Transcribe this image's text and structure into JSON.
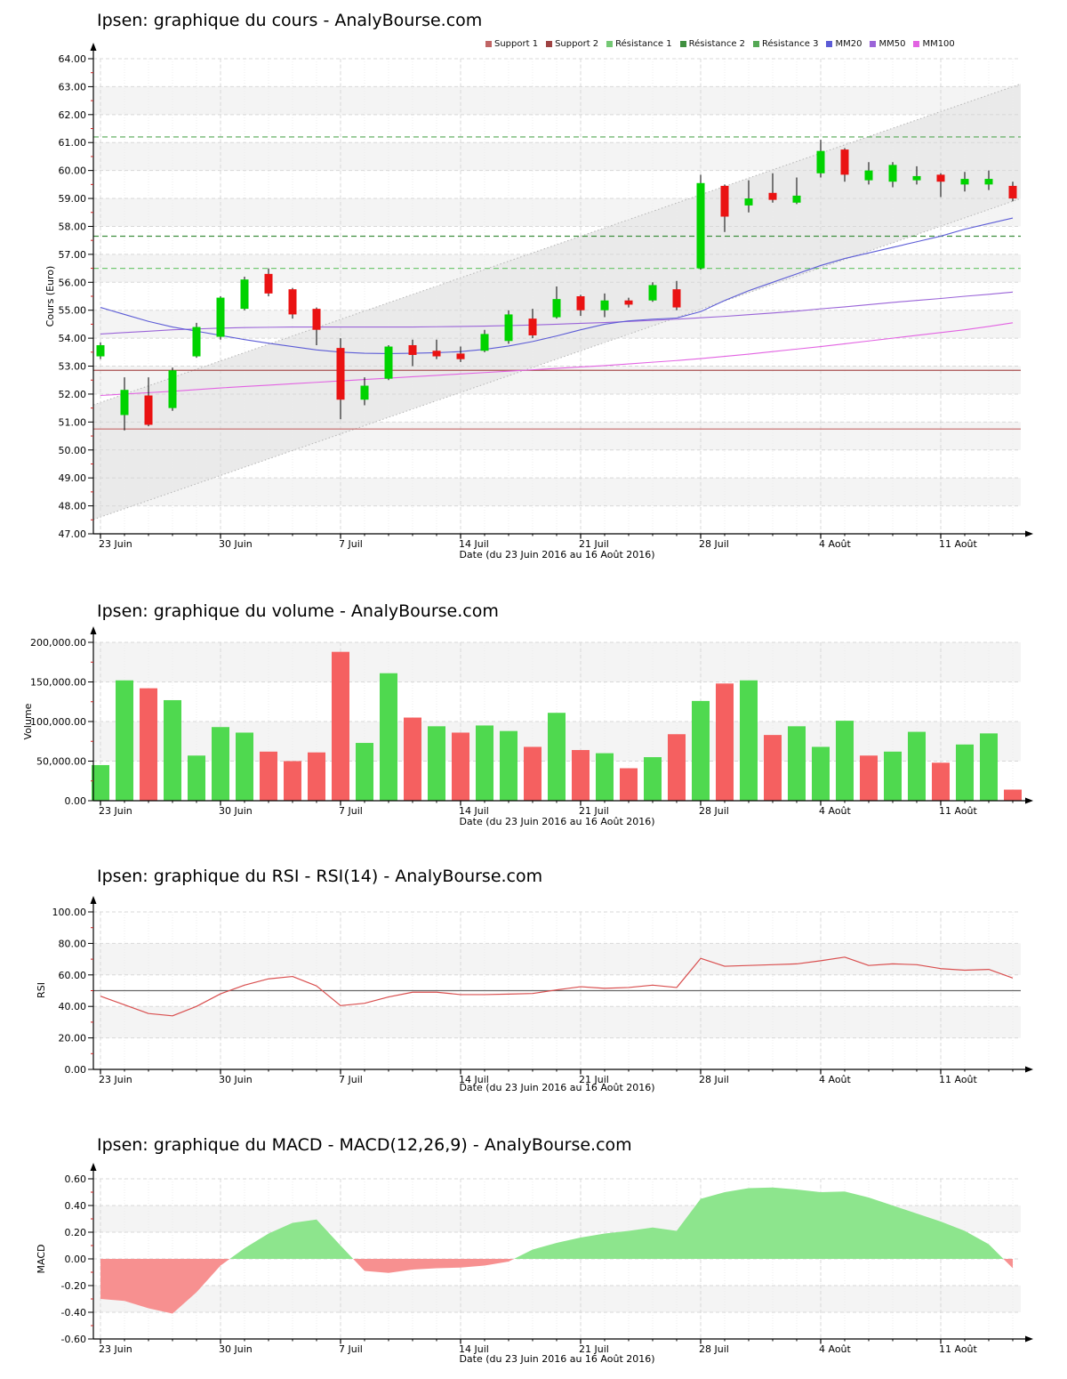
{
  "page": {
    "background": "#ffffff"
  },
  "xaxis": {
    "caption": "Date (du 23 Juin 2016 au 16 Août 2016)",
    "n_days": 39,
    "labels": [
      {
        "label": "23 Juin",
        "day": 0
      },
      {
        "label": "30 Juin",
        "day": 5
      },
      {
        "label": "7 Juil",
        "day": 10
      },
      {
        "label": "14 Juil",
        "day": 15
      },
      {
        "label": "21 Juil",
        "day": 20
      },
      {
        "label": "28 Juil",
        "day": 25
      },
      {
        "label": "4 Août",
        "day": 30
      },
      {
        "label": "11 Août",
        "day": 35
      }
    ]
  },
  "chart_data": [
    {
      "type": "candlestick",
      "title": "Ipsen: graphique du cours - AnalyBourse.com",
      "ylabel": "Cours (Euro)",
      "xlabel": "Date (du 23 Juin 2016 au 16 Août 2016)",
      "ylim": [
        47,
        64
      ],
      "ytick_step": 1,
      "yticks": [
        {
          "v": 47,
          "label": "47.00"
        },
        {
          "v": 48,
          "label": "48.00"
        },
        {
          "v": 49,
          "label": "49.00"
        },
        {
          "v": 50,
          "label": "50.00"
        },
        {
          "v": 51,
          "label": "51.00"
        },
        {
          "v": 52,
          "label": "52.00"
        },
        {
          "v": 53,
          "label": "53.00"
        },
        {
          "v": 54,
          "label": "54.00"
        },
        {
          "v": 55,
          "label": "55.00"
        },
        {
          "v": 56,
          "label": "56.00"
        },
        {
          "v": 57,
          "label": "57.00"
        },
        {
          "v": 58,
          "label": "58.00"
        },
        {
          "v": 59,
          "label": "59.00"
        },
        {
          "v": 60,
          "label": "60.00"
        },
        {
          "v": 61,
          "label": "61.00"
        },
        {
          "v": 62,
          "label": "62.00"
        },
        {
          "v": 63,
          "label": "63.00"
        },
        {
          "v": 64,
          "label": "64.00"
        }
      ],
      "shaded_bands": [
        [
          48,
          49
        ],
        [
          50,
          51
        ],
        [
          52,
          53
        ],
        [
          54,
          55
        ],
        [
          56,
          57
        ],
        [
          58,
          59
        ],
        [
          60,
          61
        ],
        [
          62,
          63
        ]
      ],
      "legend": [
        {
          "label": "Support 1",
          "color": "#c06565"
        },
        {
          "label": "Support 2",
          "color": "#9e4343"
        },
        {
          "label": "Résistance 1",
          "color": "#74c874"
        },
        {
          "label": "Résistance 2",
          "color": "#3f8f3f"
        },
        {
          "label": "Résistance 3",
          "color": "#55a855"
        },
        {
          "label": "MM20",
          "color": "#5c5cd6"
        },
        {
          "label": "MM50",
          "color": "#9a64d8"
        },
        {
          "label": "MM100",
          "color": "#e263e2"
        }
      ],
      "support_levels": [
        {
          "name": "Support 1",
          "value": 52.85,
          "color": "#a85050"
        },
        {
          "name": "Support 2",
          "value": 50.75,
          "color": "#c46a6a"
        }
      ],
      "resistance_levels": [
        {
          "name": "Résistance 1",
          "value": 56.5,
          "color": "#74c874"
        },
        {
          "name": "Résistance 2",
          "value": 57.65,
          "color": "#3f8f3f"
        },
        {
          "name": "Résistance 3",
          "value": 61.2,
          "color": "#55a855"
        }
      ],
      "trend_channel": {
        "upper_start": 51.7,
        "upper_end": 63.0,
        "lower_start": 47.6,
        "lower_end": 58.9,
        "fill": "#eaeaea",
        "line_color": "#b5b5b5"
      },
      "moving_averages": [
        {
          "name": "MM100",
          "color": "#e263e2",
          "values": [
            51.95,
            52.0,
            52.05,
            52.1,
            52.16,
            52.22,
            52.27,
            52.32,
            52.37,
            52.42,
            52.47,
            52.52,
            52.57,
            52.62,
            52.67,
            52.72,
            52.77,
            52.82,
            52.87,
            52.92,
            52.97,
            53.02,
            53.08,
            53.14,
            53.2,
            53.27,
            53.35,
            53.43,
            53.52,
            53.61,
            53.7,
            53.8,
            53.9,
            54.0,
            54.1,
            54.2,
            54.3,
            54.42,
            54.55
          ]
        },
        {
          "name": "MM50",
          "color": "#9a64d8",
          "values": [
            54.15,
            54.2,
            54.25,
            54.3,
            54.33,
            54.36,
            54.38,
            54.39,
            54.4,
            54.4,
            54.4,
            54.4,
            54.4,
            54.4,
            54.41,
            54.42,
            54.43,
            54.45,
            54.47,
            54.5,
            54.53,
            54.56,
            54.6,
            54.64,
            54.68,
            54.73,
            54.78,
            54.84,
            54.9,
            54.97,
            55.05,
            55.12,
            55.2,
            55.28,
            55.35,
            55.42,
            55.5,
            55.57,
            55.65
          ]
        },
        {
          "name": "MM20",
          "color": "#5c5cd6",
          "values": [
            55.1,
            54.85,
            54.6,
            54.4,
            54.25,
            54.1,
            53.95,
            53.82,
            53.7,
            53.58,
            53.5,
            53.46,
            53.45,
            53.46,
            53.48,
            53.52,
            53.6,
            53.72,
            53.88,
            54.08,
            54.3,
            54.5,
            54.62,
            54.68,
            54.72,
            54.95,
            55.35,
            55.7,
            56.0,
            56.3,
            56.6,
            56.85,
            57.05,
            57.25,
            57.45,
            57.65,
            57.9,
            58.1,
            58.3
          ]
        }
      ],
      "candle_up_color": "#00d300",
      "candle_down_color": "#ea1212",
      "candles_ohlc": [
        [
          53.35,
          53.85,
          53.25,
          53.75
        ],
        [
          51.25,
          52.6,
          50.7,
          52.15
        ],
        [
          51.95,
          52.6,
          50.85,
          50.9
        ],
        [
          51.5,
          52.95,
          51.4,
          52.85
        ],
        [
          53.35,
          54.55,
          53.3,
          54.4
        ],
        [
          54.05,
          55.5,
          53.95,
          55.45
        ],
        [
          55.05,
          56.2,
          55.0,
          56.1
        ],
        [
          56.3,
          56.5,
          55.5,
          55.6
        ],
        [
          55.75,
          55.8,
          54.7,
          54.85
        ],
        [
          55.05,
          55.1,
          53.75,
          54.3
        ],
        [
          53.65,
          54.0,
          51.1,
          51.8
        ],
        [
          51.8,
          52.6,
          51.6,
          52.3
        ],
        [
          52.55,
          53.75,
          52.5,
          53.7
        ],
        [
          53.75,
          53.95,
          53.0,
          53.4
        ],
        [
          53.55,
          53.95,
          53.25,
          53.35
        ],
        [
          53.45,
          53.7,
          53.15,
          53.25
        ],
        [
          53.55,
          54.3,
          53.5,
          54.15
        ],
        [
          53.9,
          55.0,
          53.8,
          54.85
        ],
        [
          54.7,
          55.05,
          54.0,
          54.1
        ],
        [
          54.75,
          55.85,
          54.7,
          55.4
        ],
        [
          55.5,
          55.55,
          54.8,
          55.0
        ],
        [
          55.0,
          55.6,
          54.75,
          55.35
        ],
        [
          55.35,
          55.45,
          55.1,
          55.2
        ],
        [
          55.35,
          56.0,
          55.3,
          55.9
        ],
        [
          55.75,
          56.05,
          55.0,
          55.1
        ],
        [
          56.5,
          59.85,
          56.45,
          59.55
        ],
        [
          59.45,
          59.5,
          57.8,
          58.35
        ],
        [
          58.75,
          59.65,
          58.5,
          59.0
        ],
        [
          59.2,
          59.9,
          58.85,
          58.95
        ],
        [
          58.85,
          59.75,
          58.8,
          59.1
        ],
        [
          59.9,
          61.1,
          59.75,
          60.7
        ],
        [
          60.75,
          60.8,
          59.6,
          59.85
        ],
        [
          59.65,
          60.3,
          59.5,
          60.0
        ],
        [
          59.6,
          60.3,
          59.4,
          60.2
        ],
        [
          59.65,
          60.15,
          59.5,
          59.8
        ],
        [
          59.85,
          59.9,
          59.05,
          59.6
        ],
        [
          59.5,
          59.95,
          59.25,
          59.7
        ],
        [
          59.5,
          60.0,
          59.3,
          59.7
        ],
        [
          59.45,
          59.6,
          58.9,
          59.0
        ]
      ]
    },
    {
      "type": "bar",
      "title": "Ipsen: graphique du volume - AnalyBourse.com",
      "ylabel": "Volume",
      "xlabel": "Date (du 23 Juin 2016 au 16 Août 2016)",
      "ylim": [
        0,
        200000
      ],
      "ytick_step": 50000,
      "yticks": [
        {
          "v": 0,
          "label": "0.00"
        },
        {
          "v": 50000,
          "label": "50,000.00"
        },
        {
          "v": 100000,
          "label": "100,000.00"
        },
        {
          "v": 150000,
          "label": "150,000.00"
        },
        {
          "v": 200000,
          "label": "200,000.00"
        }
      ],
      "shaded_bands": [
        [
          50000,
          100000
        ],
        [
          150000,
          200000
        ]
      ],
      "up_color": "#4fd94f",
      "down_color": "#f56060",
      "values": [
        45000,
        152000,
        142000,
        127000,
        57000,
        93000,
        86000,
        62000,
        50000,
        61000,
        188000,
        73000,
        161000,
        105000,
        94000,
        86000,
        95000,
        88000,
        68000,
        111000,
        64000,
        60000,
        41000,
        55000,
        84000,
        126000,
        148000,
        152000,
        83000,
        94000,
        68000,
        101000,
        57000,
        62000,
        87000,
        48000,
        71000,
        85000,
        14000
      ],
      "directions": [
        "u",
        "u",
        "d",
        "u",
        "u",
        "u",
        "u",
        "d",
        "d",
        "d",
        "d",
        "u",
        "u",
        "d",
        "u",
        "d",
        "u",
        "u",
        "d",
        "u",
        "d",
        "u",
        "d",
        "u",
        "d",
        "u",
        "d",
        "u",
        "d",
        "u",
        "u",
        "u",
        "d",
        "u",
        "u",
        "d",
        "u",
        "u",
        "d"
      ]
    },
    {
      "type": "line",
      "title": "Ipsen: graphique du RSI - RSI(14) - AnalyBourse.com",
      "ylabel": "RSI",
      "xlabel": "Date (du 23 Juin 2016 au 16 Août 2016)",
      "ylim": [
        0,
        100
      ],
      "ytick_step": 20,
      "yticks": [
        {
          "v": 0,
          "label": "0.00"
        },
        {
          "v": 20,
          "label": "20.00"
        },
        {
          "v": 40,
          "label": "40.00"
        },
        {
          "v": 60,
          "label": "60.00"
        },
        {
          "v": 80,
          "label": "80.00"
        },
        {
          "v": 100,
          "label": "100.00"
        }
      ],
      "shaded_bands": [
        [
          20,
          40
        ],
        [
          60,
          80
        ]
      ],
      "centerline": 50,
      "centerline_color": "#666666",
      "line_color": "#d94f4f",
      "values": [
        46.5,
        41,
        35.5,
        34,
        40,
        48,
        53.5,
        57.5,
        59,
        53,
        40.5,
        42,
        46,
        49,
        49,
        47.5,
        47.5,
        47.8,
        48.2,
        50.5,
        52.5,
        51.5,
        52,
        53.5,
        52,
        70.5,
        65.5,
        66,
        66.5,
        67,
        69,
        71.3,
        66,
        67,
        66.5,
        64,
        63,
        63.5,
        58
      ]
    },
    {
      "type": "area",
      "title": "Ipsen: graphique du MACD - MACD(12,26,9) - AnalyBourse.com",
      "ylabel": "MACD",
      "xlabel": "Date (du 23 Juin 2016 au 16 Août 2016)",
      "ylim": [
        -0.6,
        0.6
      ],
      "ytick_step": 0.2,
      "yticks": [
        {
          "v": -0.6,
          "label": "-0.60"
        },
        {
          "v": -0.4,
          "label": "-0.40"
        },
        {
          "v": -0.2,
          "label": "-0.20"
        },
        {
          "v": 0,
          "label": "0.00"
        },
        {
          "v": 0.2,
          "label": "0.20"
        },
        {
          "v": 0.4,
          "label": "0.40"
        },
        {
          "v": 0.6,
          "label": "0.60"
        }
      ],
      "shaded_bands": [
        [
          0.2,
          0.4
        ],
        [
          -0.4,
          -0.2
        ]
      ],
      "positive_color": "#8de58d",
      "negative_color": "#f79090",
      "values": [
        -0.3,
        -0.315,
        -0.37,
        -0.41,
        -0.25,
        -0.05,
        0.08,
        0.19,
        0.27,
        0.295,
        0.1,
        -0.09,
        -0.105,
        -0.08,
        -0.07,
        -0.065,
        -0.05,
        -0.02,
        0.07,
        0.12,
        0.16,
        0.19,
        0.21,
        0.235,
        0.21,
        0.45,
        0.5,
        0.53,
        0.535,
        0.52,
        0.5,
        0.505,
        0.46,
        0.4,
        0.34,
        0.28,
        0.21,
        0.11,
        -0.07
      ]
    }
  ]
}
